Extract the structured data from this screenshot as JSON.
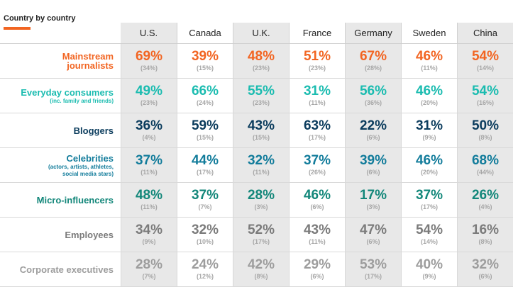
{
  "title": "Country by country",
  "colors": {
    "accent_bar": "#f26522",
    "shaded_column": "#e8e8e8",
    "orange": "#f26522",
    "teal": "#1bbcb0",
    "navy": "#0b3c5d",
    "blue": "#127c9b",
    "green": "#13877a",
    "gray": "#7b7b7b",
    "light_gray": "#9d9d9d"
  },
  "chart_data": {
    "type": "table",
    "title": "Country by country",
    "columns": [
      "U.S.",
      "Canada",
      "U.K.",
      "France",
      "Germany",
      "Sweden",
      "China"
    ],
    "shaded_columns": [
      0,
      2,
      4,
      6
    ],
    "rows": [
      {
        "label": "Mainstream journalists",
        "label_lines": [
          "Mainstream",
          "journalists"
        ],
        "sublabel": "",
        "color": "orange",
        "values": [
          "69%",
          "39%",
          "48%",
          "51%",
          "67%",
          "46%",
          "54%"
        ],
        "bases": [
          "(34%)",
          "(15%)",
          "(23%)",
          "(23%)",
          "(28%)",
          "(11%)",
          "(14%)"
        ]
      },
      {
        "label": "Everyday consumers",
        "label_lines": [
          "Everyday consumers"
        ],
        "sublabel": "(inc. family and friends)",
        "color": "teal",
        "values": [
          "49%",
          "66%",
          "55%",
          "31%",
          "56%",
          "46%",
          "54%"
        ],
        "bases": [
          "(23%)",
          "(24%)",
          "(23%)",
          "(11%)",
          "(36%)",
          "(20%)",
          "(16%)"
        ]
      },
      {
        "label": "Bloggers",
        "label_lines": [
          "Bloggers"
        ],
        "sublabel": "",
        "color": "navy",
        "values": [
          "36%",
          "59%",
          "43%",
          "63%",
          "22%",
          "31%",
          "50%"
        ],
        "bases": [
          "(4%)",
          "(15%)",
          "(15%)",
          "(17%)",
          "(6%)",
          "(9%)",
          "(8%)"
        ]
      },
      {
        "label": "Celebrities",
        "label_lines": [
          "Celebrities"
        ],
        "sublabel": "(actors, artists, athletes, social media stars)",
        "sublabel_lines": [
          "(actors, artists, athletes,",
          "social media stars)"
        ],
        "color": "blue",
        "values": [
          "37%",
          "44%",
          "32%",
          "37%",
          "39%",
          "46%",
          "68%"
        ],
        "bases": [
          "(11%)",
          "(17%)",
          "(11%)",
          "(26%)",
          "(6%)",
          "(20%)",
          "(44%)"
        ]
      },
      {
        "label": "Micro-influencers",
        "label_lines": [
          "Micro-influencers"
        ],
        "sublabel": "",
        "color": "green",
        "values": [
          "48%",
          "37%",
          "28%",
          "46%",
          "17%",
          "37%",
          "26%"
        ],
        "bases": [
          "(11%)",
          "(7%)",
          "(3%)",
          "(6%)",
          "(3%)",
          "(17%)",
          "(4%)"
        ]
      },
      {
        "label": "Employees",
        "label_lines": [
          "Employees"
        ],
        "sublabel": "",
        "color": "gray",
        "values": [
          "34%",
          "32%",
          "52%",
          "43%",
          "47%",
          "54%",
          "16%"
        ],
        "bases": [
          "(9%)",
          "(10%)",
          "(17%)",
          "(11%)",
          "(6%)",
          "(14%)",
          "(8%)"
        ]
      },
      {
        "label": "Corporate executives",
        "label_lines": [
          "Corporate executives"
        ],
        "sublabel": "",
        "color": "light_gray",
        "values": [
          "28%",
          "24%",
          "42%",
          "29%",
          "53%",
          "40%",
          "32%"
        ],
        "bases": [
          "(7%)",
          "(12%)",
          "(8%)",
          "(6%)",
          "(17%)",
          "(9%)",
          "(6%)"
        ]
      }
    ]
  }
}
